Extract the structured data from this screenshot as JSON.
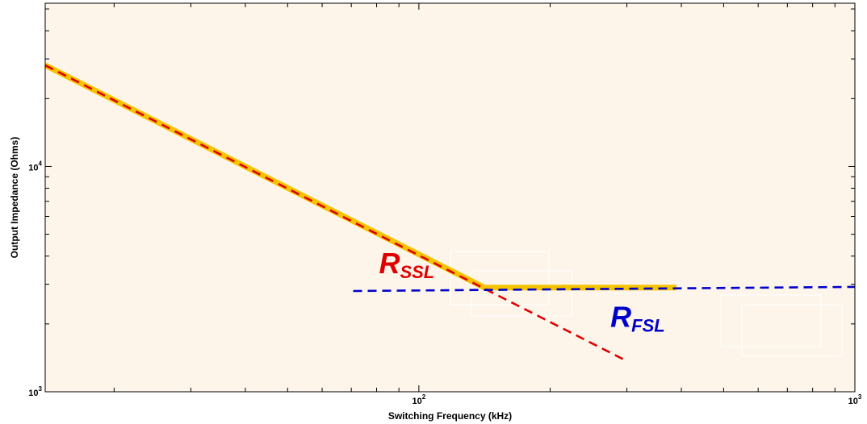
{
  "chart_data": {
    "type": "line",
    "xlabel": "Switching Frequency (kHz)",
    "ylabel": "Output Impedance (Ohms)",
    "xscale": "log",
    "yscale": "log",
    "xlim": [
      13.9,
      1000
    ],
    "ylim": [
      1000,
      53000
    ],
    "x_ticks": [
      {
        "value": 100,
        "base": "10",
        "exp": "2"
      },
      {
        "value": 1000,
        "base": "10",
        "exp": "3"
      }
    ],
    "y_ticks": [
      {
        "value": 1000,
        "base": "10",
        "exp": "3"
      },
      {
        "value": 10000,
        "base": "10",
        "exp": "4"
      }
    ],
    "grid": false,
    "background_color": "#fdf5ea",
    "series": [
      {
        "style": "thick-solid",
        "color": "#f5c400",
        "x": [
          13.9,
          141.4,
          390.0
        ],
        "y": [
          28100,
          2900,
          2900
        ]
      },
      {
        "style": "dashed",
        "color": "#e00000",
        "x": [
          13.9,
          299.7
        ],
        "y": [
          28100,
          1370
        ]
      },
      {
        "style": "dashed",
        "color": "#0000cc",
        "x": [
          70.7,
          1000
        ],
        "y": [
          2800,
          2920
        ]
      }
    ],
    "annotations": [
      {
        "base": "R",
        "sub": "SSL",
        "color": "#e00000",
        "x": 81,
        "y": 3350
      },
      {
        "base": "R",
        "sub": "FSL",
        "color": "#0000cc",
        "x": 275,
        "y": 1940
      }
    ]
  }
}
